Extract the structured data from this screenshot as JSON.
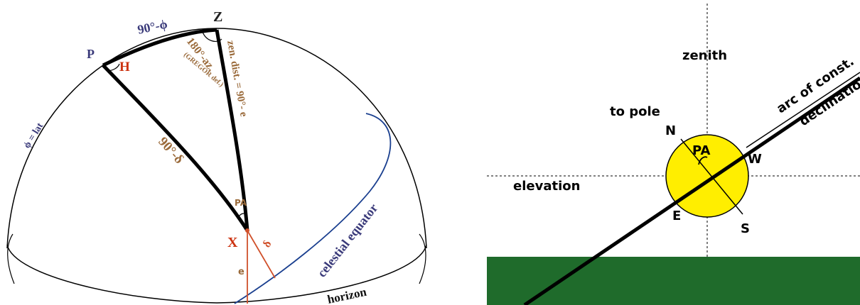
{
  "left": {
    "zenith": "Z",
    "colatitude": "90°-ϕ",
    "pole": "P",
    "hour_angle": "H",
    "azimuth": "180°-az.",
    "azimuth_note": "(GREGOR def.)",
    "zenith_distance": "zen. dist. = 90°- e",
    "latitude": "ϕ = lat",
    "codeclination": "90°-δ",
    "position_angle": "PA",
    "object": "X",
    "declination": "δ",
    "elevation": "e",
    "equator": "celestial equator",
    "horizon": "horizon"
  },
  "right": {
    "zenith": "zenith",
    "to_pole": "to pole",
    "north": "N",
    "position_angle": "PA",
    "west": "W",
    "elevation": "elevation",
    "east": "E",
    "south": "S",
    "arc_line1": "arc of const.",
    "arc_line2": "declination"
  }
}
